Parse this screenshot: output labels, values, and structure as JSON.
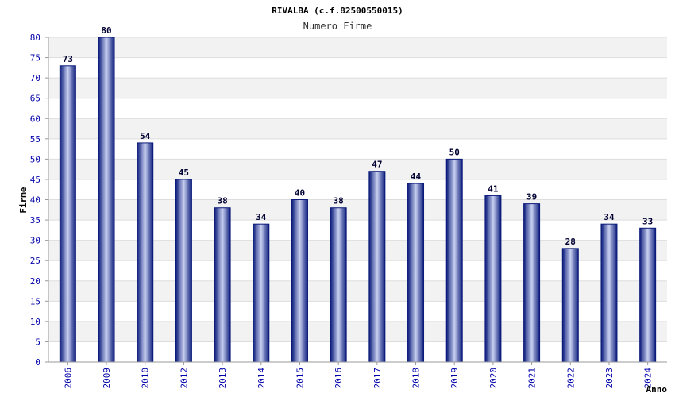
{
  "chart_data": {
    "type": "bar",
    "title": "RIVALBA (c.f.82500550015)",
    "subtitle": "Numero Firme",
    "xlabel": "Anno",
    "ylabel": "Firme",
    "ylim": [
      0,
      80
    ],
    "ytick_step": 5,
    "grid": true,
    "categories": [
      "2006",
      "2009",
      "2010",
      "2012",
      "2013",
      "2014",
      "2015",
      "2016",
      "2017",
      "2018",
      "2019",
      "2020",
      "2021",
      "2022",
      "2023",
      "2024"
    ],
    "values": [
      73,
      80,
      54,
      45,
      38,
      34,
      40,
      38,
      47,
      44,
      50,
      41,
      39,
      28,
      34,
      33
    ],
    "colors": {
      "bar_dark": "#0a1a7a",
      "bar_light": "#c8d0f0",
      "band": "#f2f2f2",
      "grid": "#dddddd",
      "tick": "#0000aa"
    }
  }
}
